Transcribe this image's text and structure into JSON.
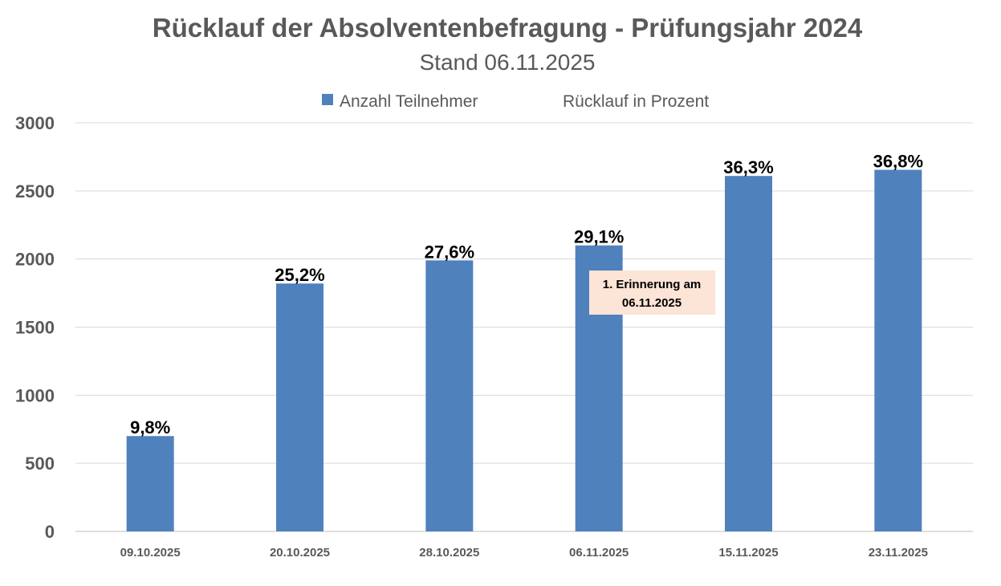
{
  "chart_data": {
    "type": "bar",
    "title": "Rücklauf der Absolventenbefragung - Prüfungsjahr 2024",
    "subtitle": "Stand 06.11.2025",
    "categories": [
      "09.10.2025",
      "20.10.2025",
      "28.10.2025",
      "06.11.2025",
      "15.11.2025",
      "23.11.2025"
    ],
    "series": [
      {
        "name": "Anzahl Teilnehmer",
        "values": [
          700,
          1820,
          1990,
          2100,
          2610,
          2655
        ],
        "color": "#4F81BD"
      }
    ],
    "secondary_legend": "Rücklauf in Prozent",
    "data_labels": [
      "9,8%",
      "25,2%",
      "27,6%",
      "29,1%",
      "36,3%",
      "36,8%"
    ],
    "ylim": [
      0,
      3000
    ],
    "yticks": [
      0,
      500,
      1000,
      1500,
      2000,
      2500,
      3000
    ],
    "grid": true,
    "legend_position": "top",
    "annotation": {
      "line1": "1. Erinnerung am",
      "line2": "06.11.2025",
      "category": "06.11.2025",
      "background": "#FCE4D6"
    },
    "colors": {
      "text": "#595959",
      "gridline": "#D9D9D9",
      "bar": "#4F81BD"
    }
  }
}
